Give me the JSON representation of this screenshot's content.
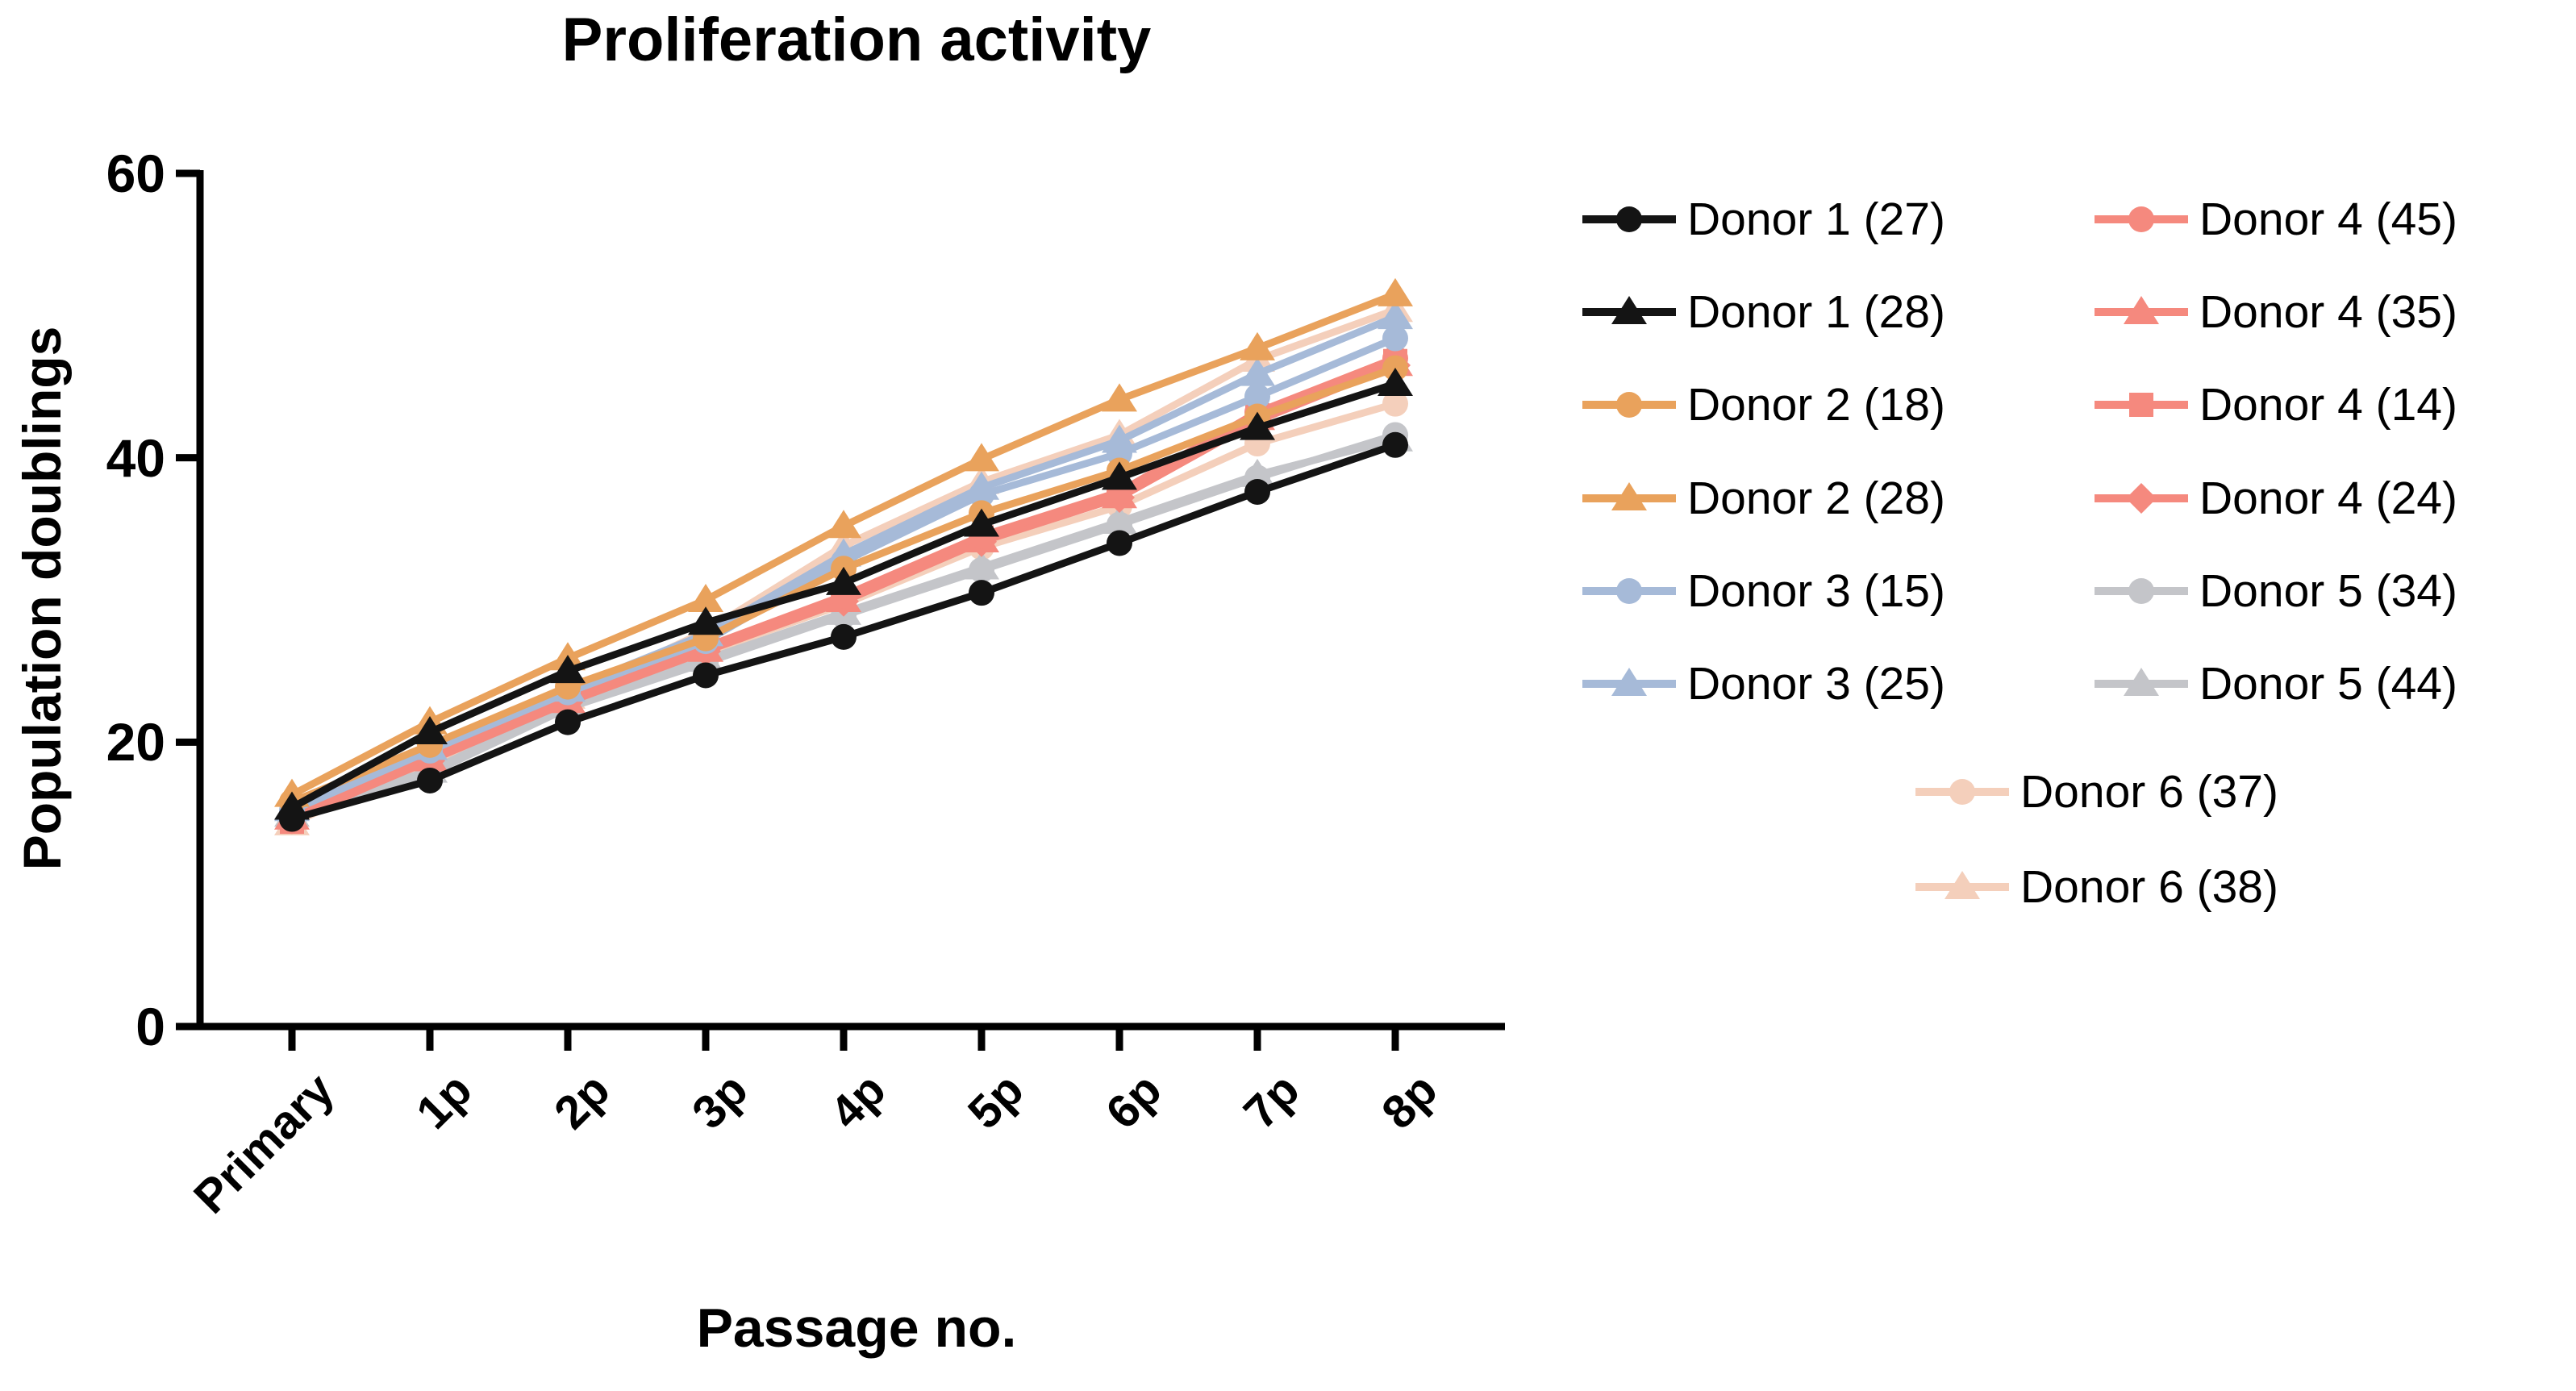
{
  "title": "Proliferation activity",
  "colors": {
    "black": "#141414",
    "orange": "#E9A25C",
    "blue": "#A6BAD8",
    "salmon": "#F5897E",
    "gray": "#C4C5C9",
    "pink": "#F4CFBB",
    "axis": "#000000",
    "background": "#FFFFFF"
  },
  "chart_data": {
    "type": "line",
    "title": "Proliferation activity",
    "xlabel": "Passage no.",
    "ylabel": "Population doublings",
    "categories": [
      "Primary",
      "1p",
      "2p",
      "3p",
      "4p",
      "5p",
      "6p",
      "7p",
      "8p"
    ],
    "y_ticks": [
      0,
      20,
      40,
      60
    ],
    "ylim": [
      0,
      60
    ],
    "grid": false,
    "legend_position": "right",
    "series": [
      {
        "id": "donor-1-27",
        "name": "Donor 1 (27)",
        "marker": "circle",
        "color_key": "black",
        "values": [
          14.6,
          17.3,
          21.4,
          24.7,
          27.4,
          30.5,
          34.0,
          37.6,
          40.9
        ]
      },
      {
        "id": "donor-1-28",
        "name": "Donor 1 (28)",
        "marker": "triangle",
        "color_key": "black",
        "values": [
          15.4,
          20.7,
          25.0,
          28.4,
          31.2,
          35.3,
          38.6,
          42.1,
          45.2
        ]
      },
      {
        "id": "donor-2-18",
        "name": "Donor 2 (18)",
        "marker": "circle",
        "color_key": "orange",
        "values": [
          15.8,
          19.8,
          23.9,
          27.3,
          32.2,
          36.1,
          39.1,
          42.9,
          46.3
        ]
      },
      {
        "id": "donor-2-28",
        "name": "Donor 2 (28)",
        "marker": "triangle",
        "color_key": "orange",
        "values": [
          16.3,
          21.4,
          25.9,
          30.0,
          35.2,
          39.9,
          44.1,
          47.7,
          51.5
        ]
      },
      {
        "id": "donor-3-15",
        "name": "Donor 3 (15)",
        "marker": "circle",
        "color_key": "blue",
        "values": [
          15.2,
          19.4,
          23.5,
          27.1,
          32.7,
          37.4,
          40.3,
          44.3,
          48.4
        ]
      },
      {
        "id": "donor-3-25",
        "name": "Donor 3 (25)",
        "marker": "triangle",
        "color_key": "blue",
        "values": [
          15.3,
          19.6,
          23.7,
          27.6,
          33.2,
          37.9,
          41.2,
          45.9,
          49.9
        ]
      },
      {
        "id": "donor-4-45",
        "name": "Donor 4 (45)",
        "marker": "circle",
        "color_key": "salmon",
        "values": [
          14.9,
          19.0,
          23.1,
          26.7,
          30.3,
          34.5,
          37.6,
          43.2,
          47.0
        ]
      },
      {
        "id": "donor-4-35",
        "name": "Donor 4 (35)",
        "marker": "triangle",
        "color_key": "salmon",
        "values": [
          14.7,
          18.8,
          22.9,
          26.5,
          30.0,
          34.2,
          37.3,
          42.8,
          46.6
        ]
      },
      {
        "id": "donor-4-14",
        "name": "Donor 4 (14)",
        "marker": "square",
        "color_key": "salmon",
        "values": [
          14.4,
          18.9,
          23.0,
          26.6,
          30.2,
          34.4,
          37.5,
          43.0,
          46.8
        ]
      },
      {
        "id": "donor-4-24",
        "name": "Donor 4 (24)",
        "marker": "diamond",
        "color_key": "salmon",
        "values": [
          14.6,
          18.7,
          22.8,
          26.4,
          29.9,
          34.1,
          37.2,
          42.6,
          46.5
        ]
      },
      {
        "id": "donor-5-34",
        "name": "Donor 5 (34)",
        "marker": "circle",
        "color_key": "gray",
        "values": [
          14.8,
          17.8,
          22.4,
          25.6,
          28.9,
          32.1,
          35.3,
          38.6,
          41.6
        ]
      },
      {
        "id": "donor-5-44",
        "name": "Donor 5 (44)",
        "marker": "triangle",
        "color_key": "gray",
        "values": [
          14.9,
          18.0,
          22.6,
          25.8,
          29.1,
          32.3,
          35.5,
          38.8,
          41.3
        ]
      },
      {
        "id": "donor-6-37",
        "name": "Donor 6 (37)",
        "marker": "circle",
        "color_key": "pink",
        "values": [
          14.4,
          18.4,
          22.9,
          26.3,
          29.7,
          33.7,
          36.6,
          41.0,
          43.8
        ]
      },
      {
        "id": "donor-6-38",
        "name": "Donor 6 (38)",
        "marker": "triangle",
        "color_key": "pink",
        "values": [
          14.3,
          18.6,
          23.2,
          27.8,
          33.8,
          38.3,
          41.6,
          46.9,
          50.4
        ]
      }
    ]
  },
  "legend": {
    "items": [
      {
        "label": "Donor 1 (27)",
        "marker": "circle",
        "color_key": "black",
        "col": 0,
        "row": 0
      },
      {
        "label": "Donor 1 (28)",
        "marker": "triangle",
        "color_key": "black",
        "col": 0,
        "row": 1
      },
      {
        "label": "Donor 2 (18)",
        "marker": "circle",
        "color_key": "orange",
        "col": 0,
        "row": 2
      },
      {
        "label": "Donor 2 (28)",
        "marker": "triangle",
        "color_key": "orange",
        "col": 0,
        "row": 3
      },
      {
        "label": "Donor 3 (15)",
        "marker": "circle",
        "color_key": "blue",
        "col": 0,
        "row": 4
      },
      {
        "label": "Donor 3 (25)",
        "marker": "triangle",
        "color_key": "blue",
        "col": 0,
        "row": 5
      },
      {
        "label": "Donor 4 (45)",
        "marker": "circle",
        "color_key": "salmon",
        "col": 1,
        "row": 0
      },
      {
        "label": "Donor 4 (35)",
        "marker": "triangle",
        "color_key": "salmon",
        "col": 1,
        "row": 1
      },
      {
        "label": "Donor 4 (14)",
        "marker": "square",
        "color_key": "salmon",
        "col": 1,
        "row": 2
      },
      {
        "label": "Donor 4 (24)",
        "marker": "diamond",
        "color_key": "salmon",
        "col": 1,
        "row": 3
      },
      {
        "label": "Donor 5 (34)",
        "marker": "circle",
        "color_key": "gray",
        "col": 1,
        "row": 4
      },
      {
        "label": "Donor 5 (44)",
        "marker": "triangle",
        "color_key": "gray",
        "col": 1,
        "row": 5
      },
      {
        "label": "Donor 6 (37)",
        "marker": "circle",
        "color_key": "pink",
        "col": 2,
        "row": 0
      },
      {
        "label": "Donor 6 (38)",
        "marker": "triangle",
        "color_key": "pink",
        "col": 2,
        "row": 1
      }
    ]
  },
  "layout": {
    "axis": {
      "x0": 362,
      "dx": 171,
      "y_zero": 1273,
      "y_top": 215,
      "x_axis_end": 1866,
      "axis_x": 248
    },
    "legend_cols_marker_x": [
      2020,
      2655,
      2433
    ],
    "legend_text_col_rows_y": [
      272,
      387,
      502,
      618,
      733,
      848
    ],
    "legend_center_rows_y": [
      982,
      1100
    ]
  }
}
